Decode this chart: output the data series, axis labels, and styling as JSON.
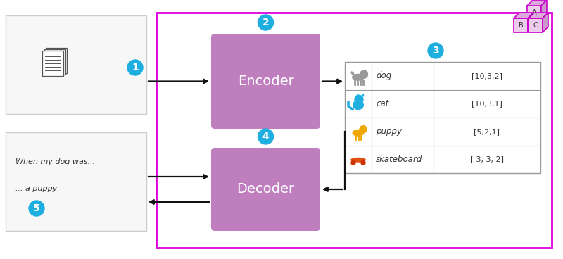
{
  "bg_color": "#ffffff",
  "main_border_color": "#dd00dd",
  "main_border_lw": 2.0,
  "box_color": "#bf7fbf",
  "box_text_color": "#ffffff",
  "circle_color": "#1eaee0",
  "circle_text_color": "#ffffff",
  "light_box_border": "#cccccc",
  "light_box_fill": "#f7f7f7",
  "table_border_color": "#999999",
  "arrow_color": "#111111",
  "text_color": "#333333",
  "encoder_label": "Encoder",
  "decoder_label": "Decoder",
  "table_rows": [
    {
      "key": "dog",
      "label": "dog",
      "values": "[10,3,2]",
      "icon_color": "#999999"
    },
    {
      "key": "cat",
      "label": "cat",
      "values": "[10,3,1]",
      "icon_color": "#1eaee0"
    },
    {
      "key": "puppy",
      "label": "puppy",
      "values": "[5,2,1]",
      "icon_color": "#f0a800"
    },
    {
      "key": "skateboard",
      "label": "skateboard",
      "values": "[-3, 3, 2]",
      "icon_color": "#e05010"
    }
  ],
  "input_text1": "When my dog was...",
  "input_text2": "... a puppy",
  "cube_color": "#cc00cc",
  "cube_face_color": "#eeccee",
  "cube_top_color": "#ddaadd",
  "cube_side_color": "#cc99cc"
}
